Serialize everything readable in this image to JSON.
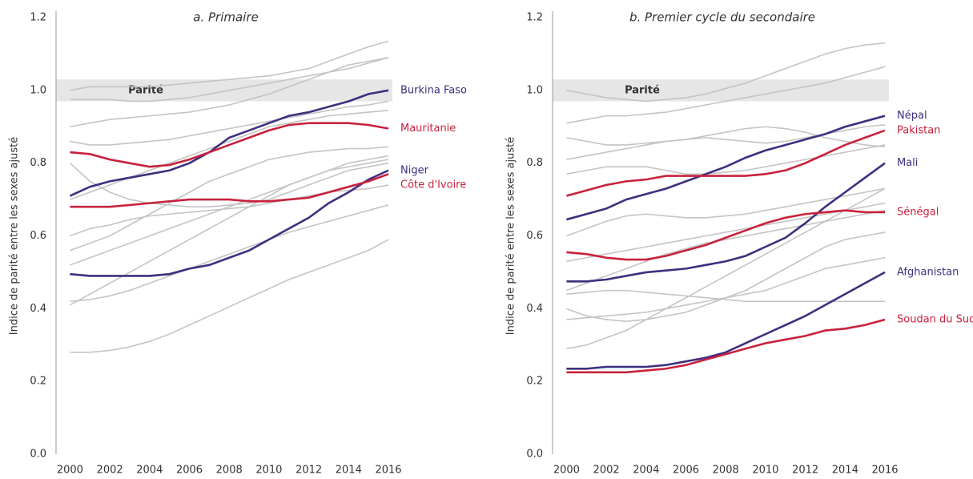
{
  "chart_data": [
    {
      "type": "line",
      "title": "a. Primaire",
      "ylabel": "Indice de parité entre les sexes ajusté",
      "parity_label": "Parité",
      "parity_band": [
        0.97,
        1.03
      ],
      "x": [
        2000,
        2001,
        2002,
        2003,
        2004,
        2005,
        2006,
        2007,
        2008,
        2009,
        2010,
        2011,
        2012,
        2013,
        2014,
        2015,
        2016
      ],
      "xlim": [
        1999.3,
        2016.2
      ],
      "xticks": [
        2000,
        2002,
        2004,
        2006,
        2008,
        2010,
        2012,
        2014,
        2016
      ],
      "ylim": [
        0,
        1.2
      ],
      "yticks": [
        {
          "value": 0,
          "label": "0.0"
        },
        0.2,
        0.4,
        0.6,
        0.8,
        {
          "value": 1,
          "label": "1.0"
        },
        1.2
      ],
      "series": [
        {
          "color": "#c4c4c4",
          "values": [
            0.28,
            0.28,
            0.285,
            0.295,
            0.31,
            0.33,
            0.355,
            0.38,
            0.405,
            0.43,
            0.455,
            0.48,
            0.5,
            0.52,
            0.54,
            0.56,
            0.59
          ]
        },
        {
          "color": "#c4c4c4",
          "values": [
            0.41,
            0.44,
            0.47,
            0.5,
            0.53,
            0.56,
            0.59,
            0.62,
            0.65,
            0.68,
            0.71,
            0.74,
            0.76,
            0.78,
            0.79,
            0.8,
            0.81
          ]
        },
        {
          "color": "#c4c4c4",
          "values": [
            0.52,
            0.54,
            0.56,
            0.58,
            0.6,
            0.62,
            0.64,
            0.66,
            0.68,
            0.7,
            0.72,
            0.74,
            0.76,
            0.78,
            0.8,
            0.81,
            0.82
          ]
        },
        {
          "color": "#c4c4c4",
          "values": [
            0.6,
            0.62,
            0.63,
            0.645,
            0.655,
            0.66,
            0.665,
            0.67,
            0.675,
            0.68,
            0.69,
            0.7,
            0.71,
            0.72,
            0.725,
            0.73,
            0.74
          ]
        },
        {
          "color": "#c4c4c4",
          "values": [
            0.8,
            0.75,
            0.72,
            0.7,
            0.69,
            0.685,
            0.68,
            0.68,
            0.685,
            0.69,
            0.7,
            0.72,
            0.74,
            0.76,
            0.78,
            0.79,
            0.8
          ]
        },
        {
          "color": "#c4c4c4",
          "values": [
            0.86,
            0.85,
            0.85,
            0.855,
            0.86,
            0.865,
            0.875,
            0.885,
            0.895,
            0.905,
            0.915,
            0.925,
            0.935,
            0.945,
            0.955,
            0.96,
            0.97
          ]
        },
        {
          "color": "#c4c4c4",
          "values": [
            0.9,
            0.91,
            0.92,
            0.925,
            0.93,
            0.935,
            0.94,
            0.95,
            0.96,
            0.975,
            0.99,
            1.01,
            1.03,
            1.05,
            1.07,
            1.08,
            1.09
          ]
        },
        {
          "color": "#c4c4c4",
          "values": [
            1.0,
            1.01,
            1.01,
            1.01,
            1.01,
            1.015,
            1.02,
            1.025,
            1.03,
            1.035,
            1.04,
            1.05,
            1.06,
            1.08,
            1.1,
            1.12,
            1.135
          ]
        },
        {
          "color": "#c4c4c4",
          "values": [
            0.975,
            0.975,
            0.975,
            0.97,
            0.97,
            0.975,
            0.98,
            0.99,
            1.0,
            1.01,
            1.02,
            1.03,
            1.04,
            1.05,
            1.06,
            1.075,
            1.09
          ]
        },
        {
          "color": "#c4c4c4",
          "values": [
            0.42,
            0.425,
            0.435,
            0.45,
            0.47,
            0.49,
            0.51,
            0.53,
            0.55,
            0.57,
            0.59,
            0.61,
            0.625,
            0.64,
            0.655,
            0.67,
            0.685
          ]
        },
        {
          "color": "#c4c4c4",
          "values": [
            0.7,
            0.72,
            0.74,
            0.76,
            0.78,
            0.8,
            0.82,
            0.84,
            0.86,
            0.88,
            0.9,
            0.91,
            0.92,
            0.93,
            0.935,
            0.94,
            0.945
          ]
        },
        {
          "color": "#c4c4c4",
          "values": [
            0.56,
            0.58,
            0.6,
            0.63,
            0.66,
            0.69,
            0.72,
            0.75,
            0.77,
            0.79,
            0.81,
            0.82,
            0.83,
            0.835,
            0.84,
            0.84,
            0.845
          ]
        },
        {
          "name": "Burkina Faso",
          "color": "#3f2f7e",
          "values": [
            0.71,
            0.735,
            0.75,
            0.76,
            0.77,
            0.78,
            0.8,
            0.83,
            0.87,
            0.89,
            0.91,
            0.93,
            0.94,
            0.955,
            0.97,
            0.99,
            1.0
          ]
        },
        {
          "name": "Mauritanie",
          "color": "#c8223c",
          "values": [
            0.83,
            0.825,
            0.81,
            0.8,
            0.79,
            0.795,
            0.81,
            0.83,
            0.85,
            0.87,
            0.89,
            0.905,
            0.91,
            0.91,
            0.91,
            0.905,
            0.895
          ]
        },
        {
          "name": "Niger",
          "color": "#3f2f7e",
          "values": [
            0.495,
            0.49,
            0.49,
            0.49,
            0.49,
            0.495,
            0.51,
            0.52,
            0.54,
            0.56,
            0.59,
            0.62,
            0.65,
            0.69,
            0.72,
            0.755,
            0.78
          ]
        },
        {
          "name": "Côte d'Ivoire",
          "color": "#c8223c",
          "values": [
            0.68,
            0.68,
            0.68,
            0.685,
            0.69,
            0.695,
            0.7,
            0.7,
            0.7,
            0.695,
            0.695,
            0.7,
            0.705,
            0.72,
            0.735,
            0.75,
            0.77
          ]
        }
      ]
    },
    {
      "type": "line",
      "title": "b. Premier cycle du secondaire",
      "ylabel": "Indice de parité entre les sexes ajusté",
      "parity_label": "Parité",
      "parity_band": [
        0.97,
        1.03
      ],
      "x": [
        2000,
        2001,
        2002,
        2003,
        2004,
        2005,
        2006,
        2007,
        2008,
        2009,
        2010,
        2011,
        2012,
        2013,
        2014,
        2015,
        2016
      ],
      "xlim": [
        1999.3,
        2016.2
      ],
      "xticks": [
        2000,
        2002,
        2004,
        2006,
        2008,
        2010,
        2012,
        2014,
        2016
      ],
      "ylim": [
        0,
        1.2
      ],
      "yticks": [
        {
          "value": 0,
          "label": "0.0"
        },
        0.2,
        0.4,
        0.6,
        0.8,
        {
          "value": 1,
          "label": "1.0"
        },
        1.2
      ],
      "series": [
        {
          "color": "#c4c4c4",
          "values": [
            1.0,
            0.99,
            0.98,
            0.975,
            0.97,
            0.975,
            0.98,
            0.99,
            1.005,
            1.02,
            1.04,
            1.06,
            1.08,
            1.1,
            1.115,
            1.125,
            1.13
          ]
        },
        {
          "color": "#c4c4c4",
          "values": [
            0.91,
            0.92,
            0.93,
            0.93,
            0.935,
            0.94,
            0.95,
            0.96,
            0.97,
            0.98,
            0.99,
            1.0,
            1.01,
            1.02,
            1.035,
            1.05,
            1.065
          ]
        },
        {
          "color": "#c4c4c4",
          "values": [
            0.29,
            0.3,
            0.32,
            0.34,
            0.37,
            0.4,
            0.43,
            0.46,
            0.49,
            0.52,
            0.55,
            0.58,
            0.61,
            0.64,
            0.67,
            0.7,
            0.73
          ]
        },
        {
          "color": "#c4c4c4",
          "values": [
            0.37,
            0.375,
            0.38,
            0.385,
            0.39,
            0.4,
            0.41,
            0.42,
            0.43,
            0.44,
            0.45,
            0.47,
            0.49,
            0.51,
            0.52,
            0.53,
            0.54
          ]
        },
        {
          "color": "#c4c4c4",
          "values": [
            0.4,
            0.38,
            0.37,
            0.365,
            0.37,
            0.38,
            0.39,
            0.41,
            0.43,
            0.45,
            0.48,
            0.51,
            0.54,
            0.57,
            0.59,
            0.6,
            0.61
          ]
        },
        {
          "color": "#c4c4c4",
          "values": [
            0.6,
            0.62,
            0.64,
            0.655,
            0.66,
            0.655,
            0.65,
            0.65,
            0.655,
            0.66,
            0.67,
            0.68,
            0.69,
            0.7,
            0.71,
            0.72,
            0.73
          ]
        },
        {
          "color": "#c4c4c4",
          "values": [
            0.77,
            0.78,
            0.79,
            0.79,
            0.79,
            0.78,
            0.77,
            0.77,
            0.775,
            0.78,
            0.79,
            0.8,
            0.81,
            0.82,
            0.83,
            0.84,
            0.85
          ]
        },
        {
          "color": "#c4c4c4",
          "values": [
            0.87,
            0.86,
            0.85,
            0.85,
            0.855,
            0.86,
            0.865,
            0.875,
            0.885,
            0.895,
            0.9,
            0.895,
            0.885,
            0.87,
            0.86,
            0.85,
            0.845
          ]
        },
        {
          "color": "#c4c4c4",
          "values": [
            0.45,
            0.47,
            0.49,
            0.51,
            0.53,
            0.55,
            0.565,
            0.58,
            0.59,
            0.6,
            0.61,
            0.62,
            0.63,
            0.64,
            0.65,
            0.66,
            0.67
          ]
        },
        {
          "color": "#c4c4c4",
          "values": [
            0.44,
            0.445,
            0.45,
            0.45,
            0.445,
            0.44,
            0.435,
            0.43,
            0.425,
            0.42,
            0.42,
            0.42,
            0.42,
            0.42,
            0.42,
            0.42,
            0.42
          ]
        },
        {
          "color": "#c4c4c4",
          "values": [
            0.53,
            0.54,
            0.55,
            0.56,
            0.57,
            0.58,
            0.59,
            0.6,
            0.61,
            0.62,
            0.63,
            0.64,
            0.65,
            0.66,
            0.67,
            0.68,
            0.69
          ]
        },
        {
          "color": "#c4c4c4",
          "values": [
            0.81,
            0.82,
            0.83,
            0.84,
            0.85,
            0.86,
            0.865,
            0.87,
            0.865,
            0.86,
            0.855,
            0.86,
            0.87,
            0.88,
            0.89,
            0.9,
            0.905
          ]
        },
        {
          "name": "Népal",
          "color": "#3f2f7e",
          "values": [
            0.645,
            0.66,
            0.675,
            0.7,
            0.715,
            0.73,
            0.75,
            0.77,
            0.79,
            0.815,
            0.835,
            0.85,
            0.865,
            0.88,
            0.9,
            0.915,
            0.93
          ]
        },
        {
          "name": "Pakistan",
          "color": "#c8223c",
          "values": [
            0.71,
            0.725,
            0.74,
            0.75,
            0.755,
            0.765,
            0.765,
            0.765,
            0.765,
            0.765,
            0.77,
            0.78,
            0.8,
            0.825,
            0.85,
            0.87,
            0.89
          ]
        },
        {
          "name": "Mali",
          "color": "#3f2f7e",
          "values": [
            0.475,
            0.475,
            0.48,
            0.49,
            0.5,
            0.505,
            0.51,
            0.52,
            0.53,
            0.545,
            0.57,
            0.595,
            0.635,
            0.68,
            0.72,
            0.76,
            0.8
          ]
        },
        {
          "name": "Sénégal",
          "color": "#c8223c",
          "values": [
            0.555,
            0.55,
            0.54,
            0.535,
            0.535,
            0.545,
            0.56,
            0.575,
            0.595,
            0.615,
            0.635,
            0.65,
            0.66,
            0.665,
            0.67,
            0.665,
            0.665
          ]
        },
        {
          "name": "Afghanistan",
          "color": "#3f2f7e",
          "values": [
            0.235,
            0.235,
            0.24,
            0.24,
            0.24,
            0.245,
            0.255,
            0.265,
            0.28,
            0.305,
            0.33,
            0.355,
            0.38,
            0.41,
            0.44,
            0.47,
            0.5
          ]
        },
        {
          "name": "Soudan du Sud",
          "color": "#c8223c",
          "values": [
            0.225,
            0.225,
            0.225,
            0.225,
            0.23,
            0.235,
            0.245,
            0.26,
            0.275,
            0.29,
            0.305,
            0.315,
            0.325,
            0.34,
            0.345,
            0.355,
            0.37
          ]
        }
      ]
    }
  ]
}
